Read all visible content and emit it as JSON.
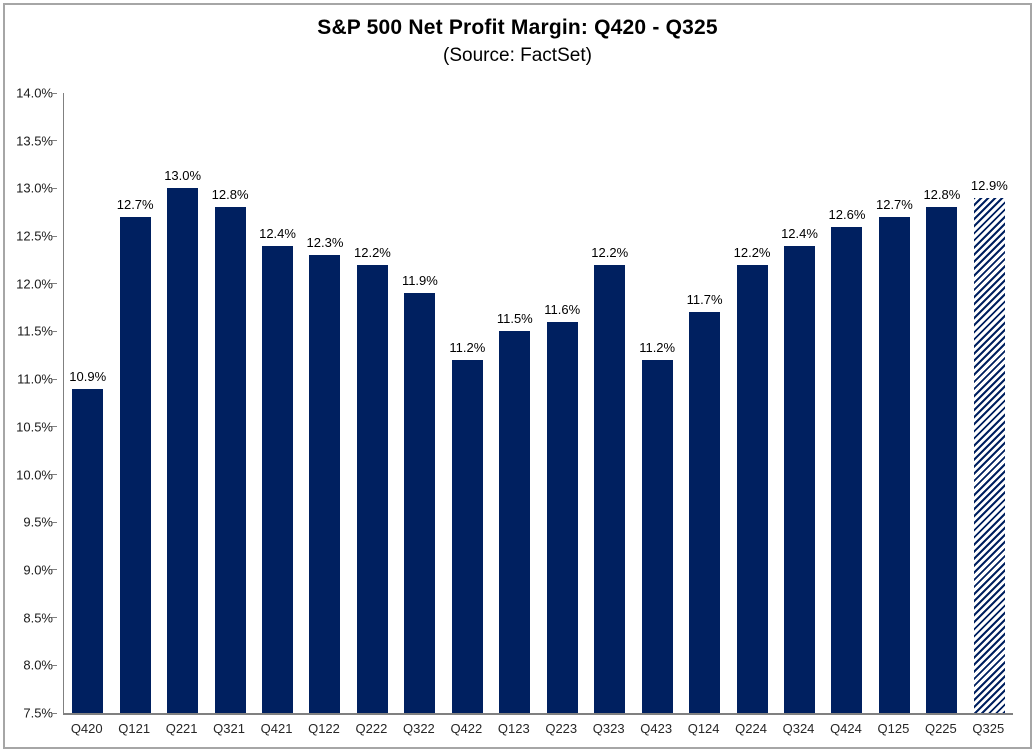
{
  "chart_data": {
    "type": "bar",
    "title": "S&P 500 Net Profit Margin: Q420 - Q325",
    "subtitle": "(Source: FactSet)",
    "categories": [
      "Q420",
      "Q121",
      "Q221",
      "Q321",
      "Q421",
      "Q122",
      "Q222",
      "Q322",
      "Q422",
      "Q123",
      "Q223",
      "Q323",
      "Q423",
      "Q124",
      "Q224",
      "Q324",
      "Q424",
      "Q125",
      "Q225",
      "Q325"
    ],
    "values": [
      10.9,
      12.7,
      13.0,
      12.8,
      12.4,
      12.3,
      12.2,
      11.9,
      11.2,
      11.5,
      11.6,
      12.2,
      11.2,
      11.7,
      12.2,
      12.4,
      12.6,
      12.7,
      12.8,
      12.9
    ],
    "data_labels": [
      "10.9%",
      "12.7%",
      "13.0%",
      "12.8%",
      "12.4%",
      "12.3%",
      "12.2%",
      "11.9%",
      "11.2%",
      "11.5%",
      "11.6%",
      "12.2%",
      "11.2%",
      "11.7%",
      "12.2%",
      "12.4%",
      "12.6%",
      "12.7%",
      "12.8%",
      "12.9%"
    ],
    "ylim": [
      7.5,
      14.0
    ],
    "ytick_step": 0.5,
    "ytick_labels": [
      "14.0%",
      "13.5%",
      "13.0%",
      "12.5%",
      "12.0%",
      "11.5%",
      "11.0%",
      "10.5%",
      "10.0%",
      "9.5%",
      "9.0%",
      "8.5%",
      "8.0%",
      "7.5%"
    ],
    "xlabel": "",
    "ylabel": "",
    "grid": false,
    "legend": "none",
    "bar_color": "#002060",
    "axis_color": "#808080",
    "hatched_categories": [
      "Q325"
    ]
  }
}
